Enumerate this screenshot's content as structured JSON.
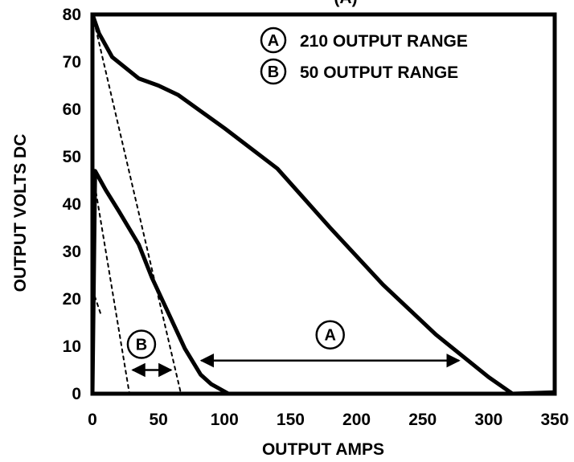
{
  "chart_data": {
    "type": "line",
    "title": "(A)",
    "xlabel": "OUTPUT AMPS",
    "ylabel": "OUTPUT VOLTS DC",
    "xlim": [
      0,
      350
    ],
    "ylim": [
      0,
      80
    ],
    "x_ticks": [
      "0",
      "50",
      "100",
      "150",
      "200",
      "250",
      "300",
      "350"
    ],
    "y_ticks": [
      "0",
      "10",
      "20",
      "30",
      "40",
      "50",
      "60",
      "70",
      "80"
    ],
    "grid": false,
    "legend": {
      "position": "top-right",
      "entries": [
        {
          "marker": "A",
          "label": "210 OUTPUT RANGE"
        },
        {
          "marker": "B",
          "label": "50 OUTPUT RANGE"
        }
      ]
    },
    "series": [
      {
        "marker": "A",
        "style": "solid",
        "x": [
          0,
          5,
          15,
          35,
          50,
          65,
          100,
          140,
          180,
          220,
          260,
          300,
          318,
          330,
          350
        ],
        "y": [
          80,
          76,
          71,
          66.5,
          65,
          63,
          56,
          47.5,
          35,
          23,
          12.5,
          3.5,
          0,
          0.1,
          0.3
        ]
      },
      {
        "marker": "B",
        "style": "solid",
        "x": [
          0,
          2,
          10,
          20,
          35,
          45,
          60,
          70,
          82,
          90,
          103
        ],
        "y": [
          0,
          47,
          43,
          38.5,
          31.5,
          24.5,
          15.5,
          9.5,
          4,
          2,
          0
        ]
      },
      {
        "marker": "A",
        "style": "dotted",
        "x": [
          0,
          67
        ],
        "y": [
          80,
          0
        ]
      },
      {
        "marker": "B",
        "style": "dotted",
        "x": [
          0,
          28
        ],
        "y": [
          47,
          0
        ]
      },
      {
        "marker": "B",
        "style": "dotted",
        "x": [
          0,
          6
        ],
        "y": [
          22,
          17
        ]
      }
    ],
    "annotations": [
      {
        "label": "A",
        "range_x": [
          80,
          280
        ],
        "y": 7
      },
      {
        "label": "B",
        "range_x": [
          28,
          62
        ],
        "y": 5
      }
    ]
  }
}
